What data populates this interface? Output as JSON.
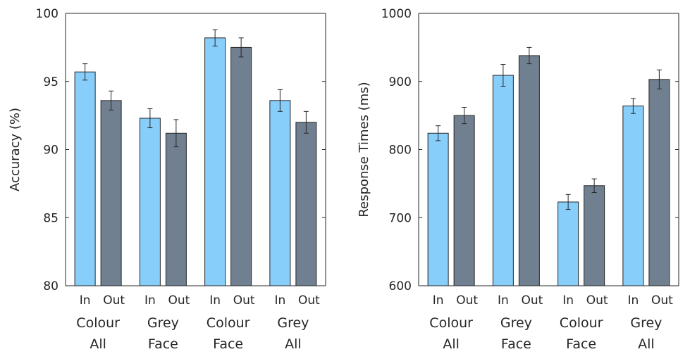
{
  "chart_data": [
    {
      "type": "bar",
      "title": "",
      "xlabel": "",
      "ylabel": "Accuracy (%)",
      "ylim": [
        80,
        100
      ],
      "yticks": [
        80,
        85,
        90,
        95,
        100
      ],
      "grid": false,
      "bar_labels": [
        "In",
        "Out"
      ],
      "groups": [
        {
          "line1": "Colour",
          "line2": "All"
        },
        {
          "line1": "Grey",
          "line2": "Face"
        },
        {
          "line1": "Colour",
          "line2": "Face"
        },
        {
          "line1": "Grey",
          "line2": "All"
        }
      ],
      "series": [
        {
          "key": "in",
          "values": [
            95.7,
            92.3,
            98.2,
            93.6
          ],
          "err": [
            0.6,
            0.7,
            0.6,
            0.8
          ],
          "color": "#87cefa"
        },
        {
          "key": "out",
          "values": [
            93.6,
            91.2,
            97.5,
            92.0
          ],
          "err": [
            0.7,
            1.0,
            0.7,
            0.8
          ],
          "color": "#708090"
        }
      ]
    },
    {
      "type": "bar",
      "title": "",
      "xlabel": "",
      "ylabel": "Response Times (ms)",
      "ylim": [
        600,
        1000
      ],
      "yticks": [
        600,
        700,
        800,
        900,
        1000
      ],
      "grid": false,
      "bar_labels": [
        "In",
        "Out"
      ],
      "groups": [
        {
          "line1": "Colour",
          "line2": "All"
        },
        {
          "line1": "Grey",
          "line2": "Face"
        },
        {
          "line1": "Colour",
          "line2": "Face"
        },
        {
          "line1": "Grey",
          "line2": "All"
        }
      ],
      "series": [
        {
          "key": "in",
          "values": [
            824,
            909,
            723,
            864
          ],
          "err": [
            11,
            16,
            11,
            11
          ],
          "color": "#87cefa"
        },
        {
          "key": "out",
          "values": [
            850,
            938,
            747,
            903
          ],
          "err": [
            12,
            12,
            10,
            14
          ],
          "color": "#708090"
        }
      ]
    }
  ]
}
